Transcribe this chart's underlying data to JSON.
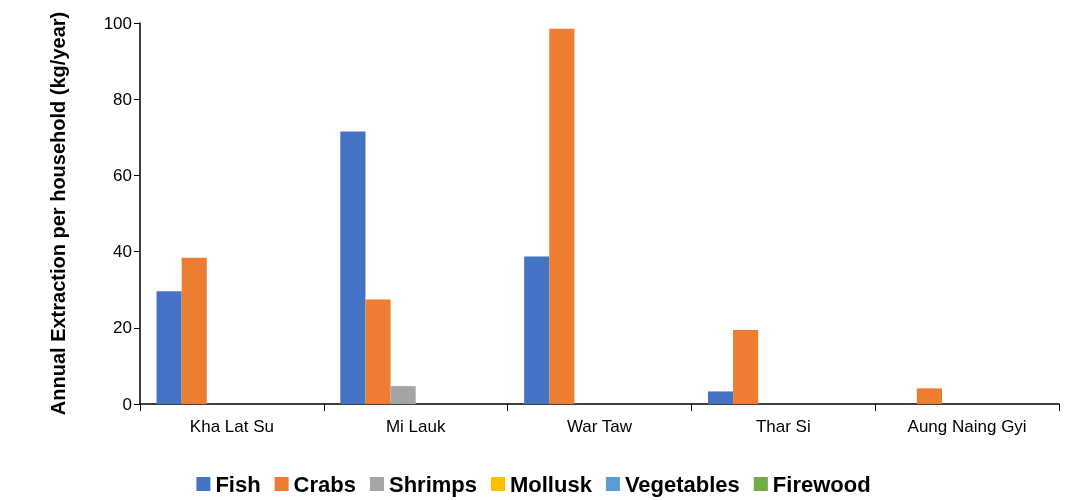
{
  "chart_data": {
    "type": "bar",
    "ylabel": "Annual Extraction per household (kg/year)",
    "categories": [
      "Kha Lat Su",
      "Mi Lauk",
      "War Taw",
      "Thar Si",
      "Aung Naing Gyi"
    ],
    "series": [
      {
        "name": "Fish",
        "color": "#4472c4",
        "values": [
          29.6,
          71.5,
          38.7,
          3.3,
          0
        ]
      },
      {
        "name": "Crabs",
        "color": "#ed7d31",
        "values": [
          38.4,
          27.4,
          98.5,
          19.4,
          4.1
        ]
      },
      {
        "name": "Shrimps",
        "color": "#a5a5a5",
        "values": [
          0,
          4.7,
          0,
          0,
          0
        ]
      },
      {
        "name": "Mollusk",
        "color": "#ffc000",
        "values": [
          0,
          0,
          0,
          0,
          0
        ]
      },
      {
        "name": "Vegetables",
        "color": "#5b9bd5",
        "values": [
          0,
          0,
          0,
          0,
          0
        ]
      },
      {
        "name": "Firewood",
        "color": "#70ad47",
        "values": [
          0,
          0,
          0,
          0,
          0
        ]
      }
    ],
    "ylim": [
      0,
      100
    ],
    "yticks": [
      0,
      20,
      40,
      60,
      80,
      100
    ],
    "grid": false,
    "legend": "bottom"
  }
}
